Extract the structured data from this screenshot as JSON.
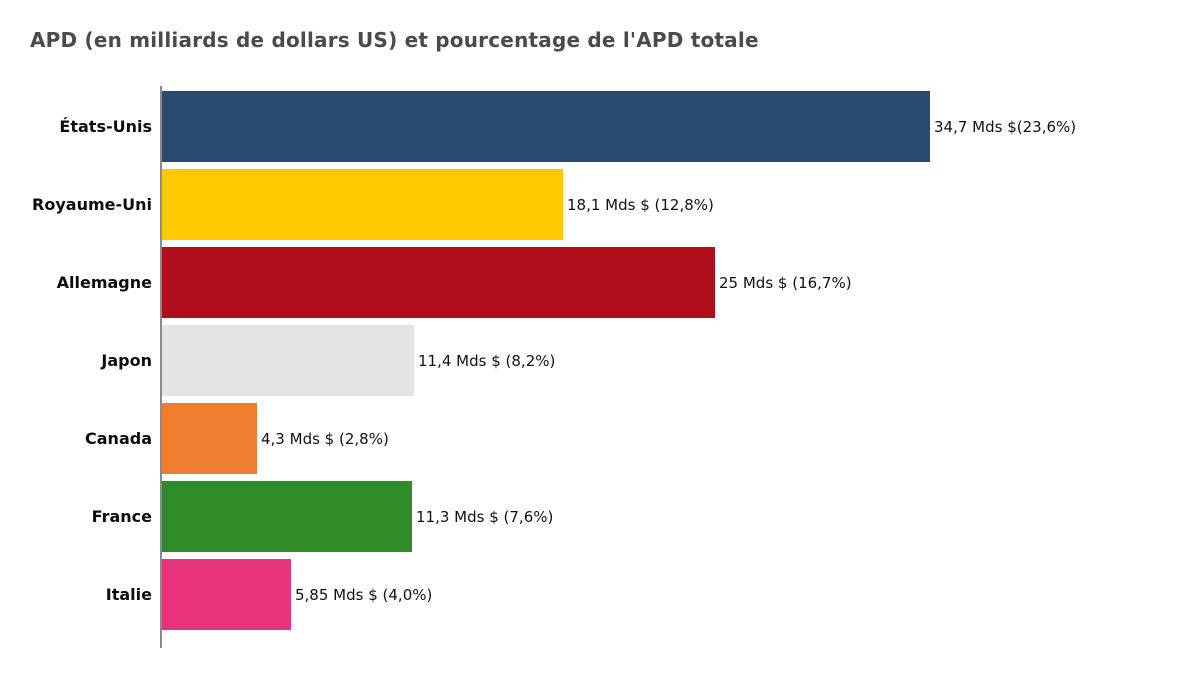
{
  "title": "APD (en milliards de dollars US) et pourcentage de l'APD totale",
  "chart_data": {
    "type": "bar",
    "orientation": "horizontal",
    "title": "APD (en milliards de dollars US) et pourcentage de l'APD totale",
    "categories": [
      "États-Unis",
      "Royaume-Uni",
      "Allemagne",
      "Japon",
      "Canada",
      "France",
      "Italie"
    ],
    "values": [
      34.7,
      18.1,
      25,
      11.4,
      4.3,
      11.3,
      5.85
    ],
    "value_labels": [
      "34,7 Mds $(23,6%)",
      "18,1 Mds $ (12,8%)",
      "25 Mds $ (16,7%)",
      "11,4 Mds $ (8,2%)",
      "4,3 Mds $ (2,8%)",
      "11,3 Mds $ (7,6%)",
      "5,85 Mds $ (4,0%)"
    ],
    "percentages": [
      23.6,
      12.8,
      16.7,
      8.2,
      2.8,
      7.6,
      4.0
    ],
    "unit": "Mds $",
    "bar_colors": [
      "#2b4a6f",
      "#fdca02",
      "#b10e1c",
      "#e3e3e3",
      "#ef7d30",
      "#2e8b28",
      "#e7327c"
    ],
    "xlabel": "",
    "ylabel": "",
    "xlim": [
      0,
      34.7
    ],
    "grid": false,
    "legend": false,
    "axis_line_color": "#8a8a8a",
    "title_color": "#4a4a4a"
  }
}
